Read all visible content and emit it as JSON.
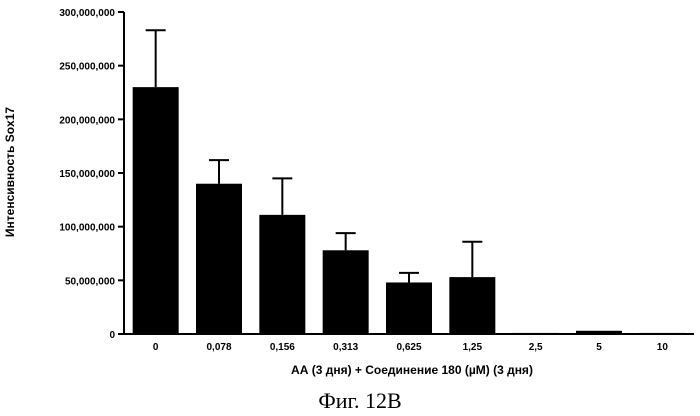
{
  "chart_data": {
    "type": "bar",
    "categories": [
      "0",
      "0,078",
      "0,156",
      "0,313",
      "0,625",
      "1,25",
      "2,5",
      "5",
      "10"
    ],
    "values": [
      230000000,
      140000000,
      111000000,
      78000000,
      48000000,
      53000000,
      1000000,
      3000000,
      1000000
    ],
    "errors": [
      53000000,
      22000000,
      34000000,
      16000000,
      9000000,
      33000000,
      0,
      0,
      0
    ],
    "xlabel": "АА (3 дня) + Соединение 180 (µM) (3 дня)",
    "ylabel": "Интенсивность Sox17",
    "ylim": [
      0,
      300000000
    ],
    "yticks": [
      0,
      50000000,
      100000000,
      150000000,
      200000000,
      250000000,
      300000000
    ],
    "ytick_labels": [
      "0",
      "50,000,000",
      "100,000,000",
      "150,000,000",
      "200,000,000",
      "250,000,000",
      "300,000,000"
    ],
    "bar_color": "#000000",
    "grid": false
  },
  "caption": "Фиг. 12В"
}
